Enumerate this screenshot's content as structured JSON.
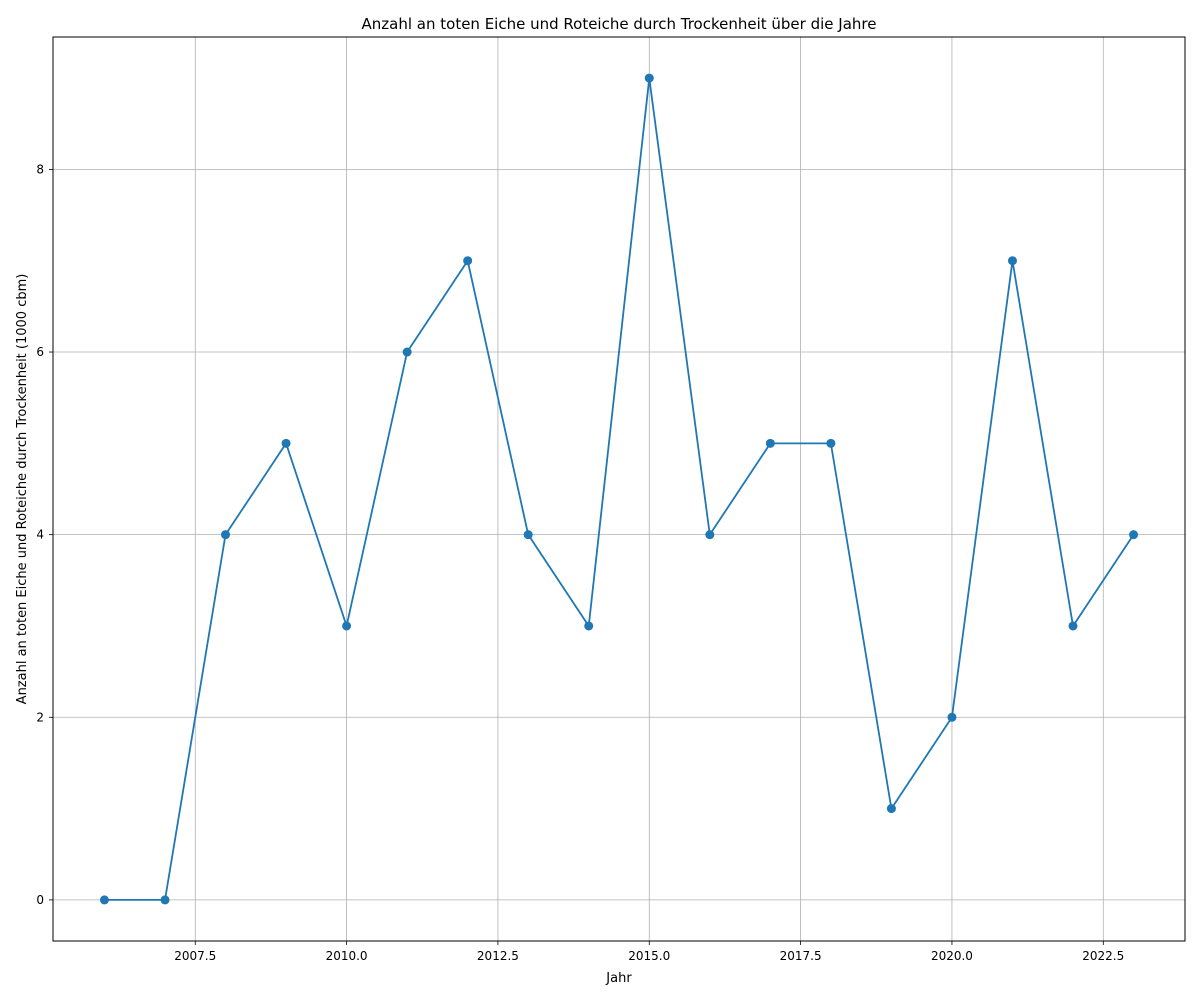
{
  "chart_data": {
    "type": "line",
    "title": "Anzahl an toten Eiche und Roteiche durch Trockenheit über die Jahre",
    "xlabel": "Jahr",
    "ylabel": "Anzahl an toten Eiche und Roteiche durch Trockenheit (1000 cbm)",
    "x": [
      2006,
      2007,
      2008,
      2009,
      2010,
      2011,
      2012,
      2013,
      2014,
      2015,
      2016,
      2017,
      2018,
      2019,
      2020,
      2021,
      2022,
      2023
    ],
    "series": [
      {
        "values": [
          0,
          0,
          4,
          5,
          3,
          6,
          7,
          4,
          3,
          9,
          4,
          5,
          5,
          1,
          2,
          7,
          3,
          4
        ],
        "color": "#1f77b4",
        "marker": "circle"
      }
    ],
    "xlim": [
      2005.15,
      2023.85
    ],
    "ylim": [
      -0.45,
      9.45
    ],
    "xticks": [
      {
        "value": 2007.5,
        "label": "2007.5"
      },
      {
        "value": 2010.0,
        "label": "2010.0"
      },
      {
        "value": 2012.5,
        "label": "2012.5"
      },
      {
        "value": 2015.0,
        "label": "2015.0"
      },
      {
        "value": 2017.5,
        "label": "2017.5"
      },
      {
        "value": 2020.0,
        "label": "2020.0"
      },
      {
        "value": 2022.5,
        "label": "2022.5"
      }
    ],
    "yticks": [
      {
        "value": 0,
        "label": "0"
      },
      {
        "value": 2,
        "label": "2"
      },
      {
        "value": 4,
        "label": "4"
      },
      {
        "value": 6,
        "label": "6"
      },
      {
        "value": 8,
        "label": "8"
      }
    ],
    "grid": true,
    "legend": false
  }
}
